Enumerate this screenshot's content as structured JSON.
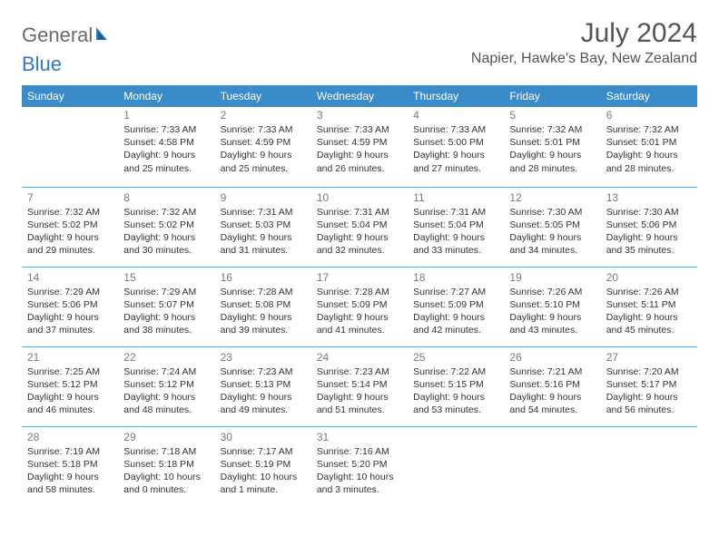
{
  "colors": {
    "header_bg": "#3b8bc9",
    "header_text": "#ffffff",
    "row_divider": "#6fa7d6",
    "daynum": "#7a7a7a",
    "body_text": "#333333",
    "logo_gray": "#6b6b6b",
    "logo_blue": "#2f7ac0",
    "background": "#ffffff"
  },
  "logo": {
    "part1": "General",
    "part2": "Blue"
  },
  "title": "July 2024",
  "location": "Napier, Hawke's Bay, New Zealand",
  "weekdays": [
    "Sunday",
    "Monday",
    "Tuesday",
    "Wednesday",
    "Thursday",
    "Friday",
    "Saturday"
  ],
  "weeks": [
    [
      null,
      {
        "n": "1",
        "sr": "Sunrise: 7:33 AM",
        "ss": "Sunset: 4:58 PM",
        "d1": "Daylight: 9 hours",
        "d2": "and 25 minutes."
      },
      {
        "n": "2",
        "sr": "Sunrise: 7:33 AM",
        "ss": "Sunset: 4:59 PM",
        "d1": "Daylight: 9 hours",
        "d2": "and 25 minutes."
      },
      {
        "n": "3",
        "sr": "Sunrise: 7:33 AM",
        "ss": "Sunset: 4:59 PM",
        "d1": "Daylight: 9 hours",
        "d2": "and 26 minutes."
      },
      {
        "n": "4",
        "sr": "Sunrise: 7:33 AM",
        "ss": "Sunset: 5:00 PM",
        "d1": "Daylight: 9 hours",
        "d2": "and 27 minutes."
      },
      {
        "n": "5",
        "sr": "Sunrise: 7:32 AM",
        "ss": "Sunset: 5:01 PM",
        "d1": "Daylight: 9 hours",
        "d2": "and 28 minutes."
      },
      {
        "n": "6",
        "sr": "Sunrise: 7:32 AM",
        "ss": "Sunset: 5:01 PM",
        "d1": "Daylight: 9 hours",
        "d2": "and 28 minutes."
      }
    ],
    [
      {
        "n": "7",
        "sr": "Sunrise: 7:32 AM",
        "ss": "Sunset: 5:02 PM",
        "d1": "Daylight: 9 hours",
        "d2": "and 29 minutes."
      },
      {
        "n": "8",
        "sr": "Sunrise: 7:32 AM",
        "ss": "Sunset: 5:02 PM",
        "d1": "Daylight: 9 hours",
        "d2": "and 30 minutes."
      },
      {
        "n": "9",
        "sr": "Sunrise: 7:31 AM",
        "ss": "Sunset: 5:03 PM",
        "d1": "Daylight: 9 hours",
        "d2": "and 31 minutes."
      },
      {
        "n": "10",
        "sr": "Sunrise: 7:31 AM",
        "ss": "Sunset: 5:04 PM",
        "d1": "Daylight: 9 hours",
        "d2": "and 32 minutes."
      },
      {
        "n": "11",
        "sr": "Sunrise: 7:31 AM",
        "ss": "Sunset: 5:04 PM",
        "d1": "Daylight: 9 hours",
        "d2": "and 33 minutes."
      },
      {
        "n": "12",
        "sr": "Sunrise: 7:30 AM",
        "ss": "Sunset: 5:05 PM",
        "d1": "Daylight: 9 hours",
        "d2": "and 34 minutes."
      },
      {
        "n": "13",
        "sr": "Sunrise: 7:30 AM",
        "ss": "Sunset: 5:06 PM",
        "d1": "Daylight: 9 hours",
        "d2": "and 35 minutes."
      }
    ],
    [
      {
        "n": "14",
        "sr": "Sunrise: 7:29 AM",
        "ss": "Sunset: 5:06 PM",
        "d1": "Daylight: 9 hours",
        "d2": "and 37 minutes."
      },
      {
        "n": "15",
        "sr": "Sunrise: 7:29 AM",
        "ss": "Sunset: 5:07 PM",
        "d1": "Daylight: 9 hours",
        "d2": "and 38 minutes."
      },
      {
        "n": "16",
        "sr": "Sunrise: 7:28 AM",
        "ss": "Sunset: 5:08 PM",
        "d1": "Daylight: 9 hours",
        "d2": "and 39 minutes."
      },
      {
        "n": "17",
        "sr": "Sunrise: 7:28 AM",
        "ss": "Sunset: 5:09 PM",
        "d1": "Daylight: 9 hours",
        "d2": "and 41 minutes."
      },
      {
        "n": "18",
        "sr": "Sunrise: 7:27 AM",
        "ss": "Sunset: 5:09 PM",
        "d1": "Daylight: 9 hours",
        "d2": "and 42 minutes."
      },
      {
        "n": "19",
        "sr": "Sunrise: 7:26 AM",
        "ss": "Sunset: 5:10 PM",
        "d1": "Daylight: 9 hours",
        "d2": "and 43 minutes."
      },
      {
        "n": "20",
        "sr": "Sunrise: 7:26 AM",
        "ss": "Sunset: 5:11 PM",
        "d1": "Daylight: 9 hours",
        "d2": "and 45 minutes."
      }
    ],
    [
      {
        "n": "21",
        "sr": "Sunrise: 7:25 AM",
        "ss": "Sunset: 5:12 PM",
        "d1": "Daylight: 9 hours",
        "d2": "and 46 minutes."
      },
      {
        "n": "22",
        "sr": "Sunrise: 7:24 AM",
        "ss": "Sunset: 5:12 PM",
        "d1": "Daylight: 9 hours",
        "d2": "and 48 minutes."
      },
      {
        "n": "23",
        "sr": "Sunrise: 7:23 AM",
        "ss": "Sunset: 5:13 PM",
        "d1": "Daylight: 9 hours",
        "d2": "and 49 minutes."
      },
      {
        "n": "24",
        "sr": "Sunrise: 7:23 AM",
        "ss": "Sunset: 5:14 PM",
        "d1": "Daylight: 9 hours",
        "d2": "and 51 minutes."
      },
      {
        "n": "25",
        "sr": "Sunrise: 7:22 AM",
        "ss": "Sunset: 5:15 PM",
        "d1": "Daylight: 9 hours",
        "d2": "and 53 minutes."
      },
      {
        "n": "26",
        "sr": "Sunrise: 7:21 AM",
        "ss": "Sunset: 5:16 PM",
        "d1": "Daylight: 9 hours",
        "d2": "and 54 minutes."
      },
      {
        "n": "27",
        "sr": "Sunrise: 7:20 AM",
        "ss": "Sunset: 5:17 PM",
        "d1": "Daylight: 9 hours",
        "d2": "and 56 minutes."
      }
    ],
    [
      {
        "n": "28",
        "sr": "Sunrise: 7:19 AM",
        "ss": "Sunset: 5:18 PM",
        "d1": "Daylight: 9 hours",
        "d2": "and 58 minutes."
      },
      {
        "n": "29",
        "sr": "Sunrise: 7:18 AM",
        "ss": "Sunset: 5:18 PM",
        "d1": "Daylight: 10 hours",
        "d2": "and 0 minutes."
      },
      {
        "n": "30",
        "sr": "Sunrise: 7:17 AM",
        "ss": "Sunset: 5:19 PM",
        "d1": "Daylight: 10 hours",
        "d2": "and 1 minute."
      },
      {
        "n": "31",
        "sr": "Sunrise: 7:16 AM",
        "ss": "Sunset: 5:20 PM",
        "d1": "Daylight: 10 hours",
        "d2": "and 3 minutes."
      },
      null,
      null,
      null
    ]
  ]
}
